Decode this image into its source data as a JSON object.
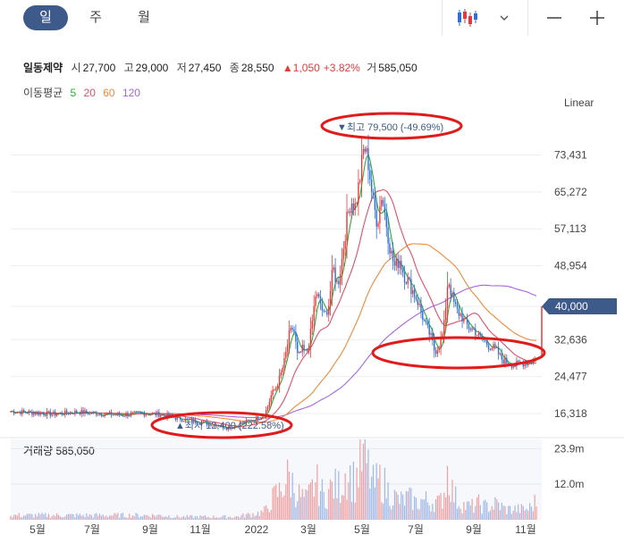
{
  "tabs": {
    "day": "일",
    "week": "주",
    "month": "월"
  },
  "toolbar": {
    "chart_type_icon": "candlestick-icon",
    "dropdown_icon": "chevron-down-icon",
    "minus_icon": "minus-icon",
    "plus_icon": "plus-icon"
  },
  "quote": {
    "name": "일동제약",
    "open_label": "시",
    "open": "27,700",
    "high_label": "고",
    "high": "29,000",
    "low_label": "저",
    "low": "27,450",
    "close_label": "종",
    "close": "28,550",
    "change": "▲1,050",
    "change_pct": "+3.82%",
    "volume_label": "거",
    "volume": "585,050"
  },
  "moving_average": {
    "label": "이동평균",
    "p5": "5",
    "p20": "20",
    "p60": "60",
    "p120": "120",
    "colors": {
      "p5": "#2eaa3a",
      "p20": "#e0506a",
      "p60": "#f08a3c",
      "p120": "#a566e0"
    }
  },
  "scale_mode": "Linear",
  "current_price_label": "40,000",
  "volume_panel": {
    "label": "거래량",
    "value": "585,050",
    "ticks": [
      "23.9m",
      "12.0m"
    ]
  },
  "chart_data": {
    "type": "candlestick",
    "yticks": [
      "73,431",
      "65,272",
      "57,113",
      "48,954",
      "40,000",
      "32,636",
      "24,477",
      "16,318"
    ],
    "ytick_values": [
      73431,
      65272,
      57113,
      48954,
      40000,
      32636,
      24477,
      16318
    ],
    "xticks": [
      "5월",
      "7월",
      "9월",
      "11월",
      "2022",
      "3월",
      "5월",
      "7월",
      "9월",
      "11월"
    ],
    "annotations": {
      "high": {
        "text": "▼최고 79,500 (-49.69%)",
        "value": 79500
      },
      "low": {
        "text": "▲최저 12,400 (222.58%)",
        "value": 12400
      }
    },
    "close_series": [
      [
        0,
        16800
      ],
      [
        5,
        16500
      ],
      [
        10,
        16200
      ],
      [
        15,
        16700
      ],
      [
        20,
        16300
      ],
      [
        25,
        16000
      ],
      [
        30,
        16400
      ],
      [
        34,
        16100
      ],
      [
        38,
        15200
      ],
      [
        42,
        14600
      ],
      [
        45,
        14100
      ],
      [
        47,
        13800
      ],
      [
        49,
        13200
      ],
      [
        51,
        13600
      ],
      [
        53,
        14400
      ],
      [
        55,
        15000
      ],
      [
        57,
        15800
      ],
      [
        58,
        17200
      ],
      [
        59,
        20500
      ],
      [
        60,
        22000
      ],
      [
        61,
        24500
      ],
      [
        62,
        28000
      ],
      [
        63,
        33500
      ],
      [
        64,
        35500
      ],
      [
        65,
        28500
      ],
      [
        66,
        30500
      ],
      [
        67,
        29500
      ],
      [
        68,
        34500
      ],
      [
        69,
        42500
      ],
      [
        70,
        41000
      ],
      [
        71,
        37500
      ],
      [
        72,
        40500
      ],
      [
        73,
        48500
      ],
      [
        74,
        44500
      ],
      [
        75,
        50500
      ],
      [
        76,
        58500
      ],
      [
        77,
        63500
      ],
      [
        78,
        62000
      ],
      [
        79,
        68000
      ],
      [
        80,
        75500
      ],
      [
        81,
        71500
      ],
      [
        82,
        63000
      ],
      [
        83,
        58500
      ],
      [
        84,
        65000
      ],
      [
        85,
        58500
      ],
      [
        86,
        52000
      ],
      [
        87,
        48500
      ],
      [
        88,
        50500
      ],
      [
        89,
        47000
      ],
      [
        90,
        45500
      ],
      [
        91,
        43500
      ],
      [
        92,
        41500
      ],
      [
        93,
        38500
      ],
      [
        94,
        35500
      ],
      [
        95,
        33500
      ],
      [
        96,
        30000
      ],
      [
        97,
        31500
      ],
      [
        98,
        34500
      ],
      [
        99,
        46500
      ],
      [
        100,
        41500
      ],
      [
        101,
        39000
      ],
      [
        102,
        38000
      ],
      [
        103,
        36000
      ],
      [
        104,
        35200
      ],
      [
        105,
        34800
      ],
      [
        106,
        33200
      ],
      [
        107,
        32500
      ],
      [
        108,
        31500
      ],
      [
        109,
        31000
      ],
      [
        110,
        30200
      ],
      [
        111,
        28500
      ],
      [
        112,
        27800
      ],
      [
        113,
        27500
      ],
      [
        114,
        27000
      ],
      [
        115,
        27200
      ],
      [
        116,
        27600
      ],
      [
        117,
        27700
      ],
      [
        118,
        28000
      ],
      [
        119,
        28550
      ]
    ],
    "volume_series": [
      [
        0,
        1.5
      ],
      [
        5,
        1.5
      ],
      [
        10,
        1.5
      ],
      [
        15,
        1.5
      ],
      [
        20,
        1.5
      ],
      [
        25,
        1.5
      ],
      [
        30,
        1.5
      ],
      [
        34,
        1.5
      ],
      [
        38,
        1.0
      ],
      [
        42,
        1.0
      ],
      [
        45,
        1.0
      ],
      [
        47,
        1.0
      ],
      [
        49,
        1.0
      ],
      [
        51,
        1.0
      ],
      [
        53,
        1.5
      ],
      [
        55,
        2.0
      ],
      [
        57,
        2.5
      ],
      [
        58,
        3.5
      ],
      [
        59,
        6.5
      ],
      [
        60,
        8.5
      ],
      [
        61,
        9.5
      ],
      [
        62,
        12.5
      ],
      [
        63,
        14.5
      ],
      [
        64,
        11.5
      ],
      [
        65,
        8.5
      ],
      [
        66,
        7.5
      ],
      [
        67,
        6.5
      ],
      [
        68,
        9.5
      ],
      [
        69,
        12.5
      ],
      [
        70,
        10.5
      ],
      [
        71,
        7.5
      ],
      [
        72,
        9.5
      ],
      [
        73,
        11.5
      ],
      [
        74,
        10.5
      ],
      [
        75,
        12.5
      ],
      [
        76,
        16.5
      ],
      [
        77,
        14.5
      ],
      [
        78,
        12.5
      ],
      [
        79,
        18.5
      ],
      [
        80,
        20.5
      ],
      [
        81,
        16.5
      ],
      [
        82,
        11.5
      ],
      [
        83,
        12.5
      ],
      [
        84,
        13.5
      ],
      [
        85,
        10.5
      ],
      [
        86,
        8.5
      ],
      [
        87,
        7.5
      ],
      [
        88,
        6.5
      ],
      [
        89,
        6.5
      ],
      [
        90,
        7.5
      ],
      [
        91,
        6.5
      ],
      [
        92,
        5.5
      ],
      [
        93,
        6.5
      ],
      [
        94,
        6.5
      ],
      [
        95,
        5.5
      ],
      [
        96,
        6.5
      ],
      [
        97,
        5.5
      ],
      [
        98,
        8.5
      ],
      [
        99,
        17.5
      ],
      [
        100,
        9.5
      ],
      [
        101,
        6.5
      ],
      [
        102,
        5.5
      ],
      [
        103,
        4.5
      ],
      [
        104,
        4.5
      ],
      [
        105,
        4.5
      ],
      [
        106,
        5.5
      ],
      [
        107,
        4.5
      ],
      [
        108,
        4.5
      ],
      [
        109,
        4.5
      ],
      [
        110,
        5.5
      ],
      [
        111,
        4.5
      ],
      [
        112,
        3.5
      ],
      [
        113,
        3.5
      ],
      [
        114,
        3.5
      ],
      [
        115,
        3.5
      ],
      [
        116,
        3.5
      ],
      [
        117,
        3.5
      ],
      [
        118,
        4.5
      ],
      [
        119,
        6.5
      ]
    ],
    "volume_ymax": 27,
    "ymin": 11000,
    "ymax": 82000,
    "grid": true
  }
}
